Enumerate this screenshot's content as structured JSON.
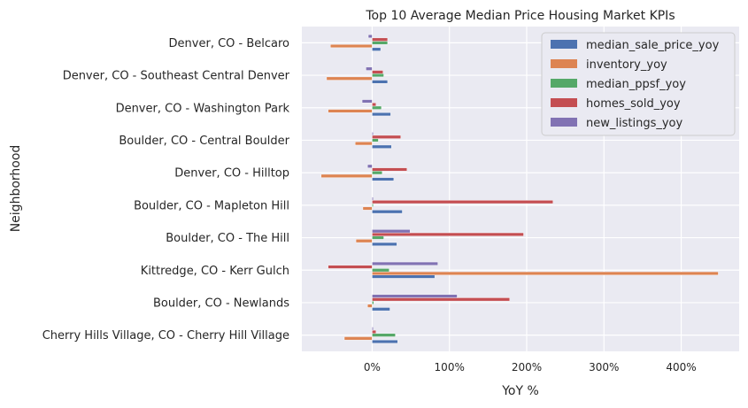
{
  "chart_data": {
    "type": "bar",
    "orientation": "horizontal",
    "title": "Top 10 Average Median Price Housing Market KPIs",
    "xlabel": "YoY %",
    "ylabel": "Neighborhood",
    "xlim": [
      -0.91,
      4.75
    ],
    "xticks": [
      0,
      1,
      2,
      3,
      4
    ],
    "xtick_labels": [
      "0%",
      "100%",
      "200%",
      "300%",
      "400%"
    ],
    "grid": true,
    "legend_position": "top-right",
    "categories": [
      "Denver, CO - Belcaro",
      "Denver, CO - Southeast Central Denver",
      "Denver, CO - Washington Park",
      "Boulder, CO - Central Boulder",
      "Denver, CO - Hilltop",
      "Boulder, CO - Mapleton Hill",
      "Boulder, CO - The Hill",
      "Kittredge, CO - Kerr Gulch",
      "Boulder, CO - Newlands",
      "Cherry Hills Village, CO - Cherry Hill Village"
    ],
    "series": [
      {
        "name": "median_sale_price_yoy",
        "color": "#4c72b0",
        "values": [
          0.11,
          0.2,
          0.24,
          0.25,
          0.28,
          0.39,
          0.32,
          0.81,
          0.23,
          0.33
        ]
      },
      {
        "name": "inventory_yoy",
        "color": "#dd8452",
        "values": [
          -0.54,
          -0.59,
          -0.57,
          -0.22,
          -0.66,
          -0.12,
          -0.21,
          4.48,
          -0.06,
          -0.36
        ]
      },
      {
        "name": "median_ppsf_yoy",
        "color": "#55a868",
        "values": [
          0.2,
          0.15,
          0.12,
          0.08,
          0.13,
          0.0,
          0.15,
          0.22,
          0.02,
          0.3
        ]
      },
      {
        "name": "homes_sold_yoy",
        "color": "#c44e52",
        "values": [
          0.2,
          0.14,
          0.05,
          0.37,
          0.45,
          2.34,
          1.96,
          -0.57,
          1.78,
          0.05
        ]
      },
      {
        "name": "new_listings_yoy",
        "color": "#8172b3",
        "values": [
          -0.05,
          -0.08,
          -0.13,
          0.0,
          -0.06,
          0.0,
          0.49,
          0.85,
          1.1,
          0.0
        ]
      }
    ]
  }
}
